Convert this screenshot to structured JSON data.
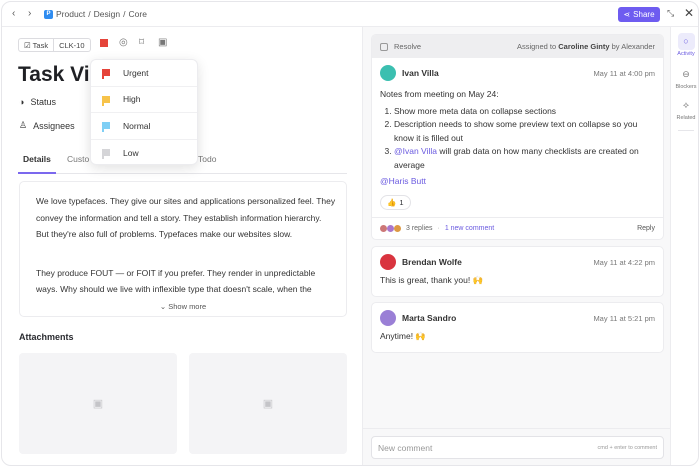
{
  "topbar": {
    "back": "‹",
    "forward": "›",
    "breadcrumb": [
      "Product",
      "Design",
      "Core"
    ],
    "separator": "/",
    "share_label": "Share",
    "accent": "#6e5cf0"
  },
  "task": {
    "type_label": "Task",
    "id": "CLK-10",
    "title": "Task Vie",
    "status_label": "Status",
    "assignees_label": "Assignees"
  },
  "priority_menu": {
    "items": [
      {
        "label": "Urgent",
        "color": "#e5443a"
      },
      {
        "label": "High",
        "color": "#f7c34a"
      },
      {
        "label": "Normal",
        "color": "#7fcff5"
      },
      {
        "label": "Low",
        "color": "#d5d5d8"
      }
    ]
  },
  "tabs": [
    {
      "label": "Details"
    },
    {
      "label": "Custo"
    },
    {
      "label": "Todo"
    }
  ],
  "description": {
    "p1": "We love typefaces. They give our sites and applications personalized feel. They convey the information and tell a story. They establish information hierarchy. But they're also full of problems. Typefaces make our websites slow.",
    "p2a": "They produce FOUT — or FOIT if you prefer. They render in unpredictable",
    "p2b": "ways. Why should we live with inflexible type that doesn't scale, when the",
    "show_more": "Show more"
  },
  "attachments": {
    "heading": "Attachments"
  },
  "activity": {
    "resolve_label": "Resolve",
    "assigned_prefix": "Assigned to",
    "assignee": "Caroline Ginty",
    "assigned_by": "by Alexander",
    "comments": [
      {
        "author": "Ivan Villa",
        "time": "May 11 at 4:00 pm",
        "intro": "Notes from meeting on May 24:",
        "items": [
          "Show more meta data on collapse sections",
          "Description needs to show some preview text on collapse so you know it is filled out"
        ],
        "item3_mention": "@Ivan Villa",
        "item3_rest": " will grab data on how many checklists are created on average",
        "mention": "@Haris Butt",
        "reaction": "👍",
        "reaction_count": "1",
        "replies": "3 replies",
        "new_comment": "1 new comment",
        "reply_label": "Reply"
      },
      {
        "author": "Brendan Wolfe",
        "time": "May 11 at 4:22 pm",
        "text": "This is great, thank you! 🙌"
      },
      {
        "author": "Marta Sandro",
        "time": "May 11 at 5:21 pm",
        "text": "Anytime! 🙌"
      }
    ],
    "input_placeholder": "New comment",
    "input_hint": "cmd + enter to comment"
  },
  "sidebar": [
    {
      "label": "Activity",
      "active": true
    },
    {
      "label": "Blockers"
    },
    {
      "label": "Related"
    }
  ]
}
